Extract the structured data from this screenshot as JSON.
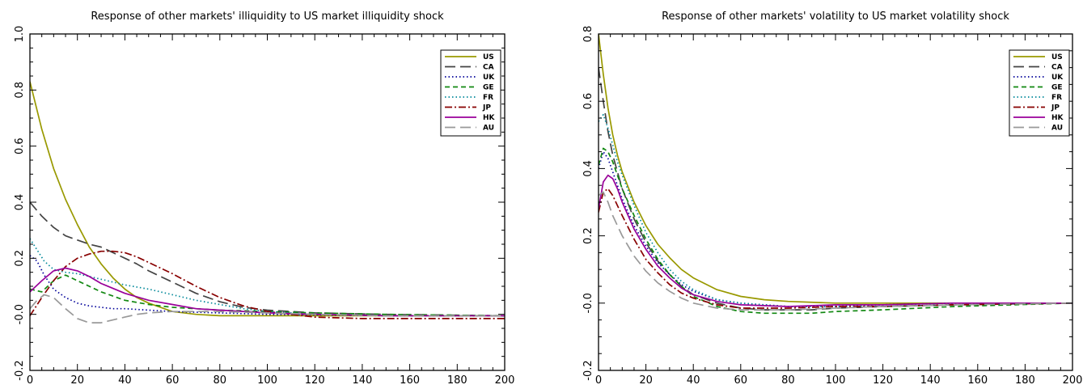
{
  "chart_data": [
    {
      "type": "line",
      "title": "Response of other markets' illiquidity to US market illiquidity shock",
      "xlabel": "",
      "ylabel": "",
      "xlim": [
        0,
        200
      ],
      "ylim": [
        -0.2,
        1.0
      ],
      "xticks": [
        0,
        20,
        40,
        60,
        80,
        100,
        120,
        140,
        160,
        180,
        200
      ],
      "yticks": [
        -0.2,
        0.0,
        0.2,
        0.4,
        0.6,
        0.8,
        1.0
      ],
      "tick_labels_x": [
        "0",
        "20",
        "40",
        "60",
        "80",
        "100",
        "120",
        "140",
        "160",
        "180",
        "200"
      ],
      "tick_labels_y": [
        "-0.2",
        "-0.0",
        "0.2",
        "0.4",
        "0.6",
        "0.8",
        "1.0"
      ],
      "legend": "top-right",
      "grid": false,
      "series": [
        {
          "name": "US",
          "color": "#999900",
          "dash": "solid",
          "x": [
            0,
            5,
            10,
            15,
            20,
            25,
            30,
            35,
            40,
            45,
            50,
            60,
            70,
            80,
            100,
            120,
            150,
            200
          ],
          "y": [
            0.83,
            0.66,
            0.52,
            0.41,
            0.32,
            0.24,
            0.18,
            0.13,
            0.09,
            0.06,
            0.04,
            0.01,
            0.0,
            -0.005,
            -0.005,
            -0.005,
            -0.005,
            -0.005
          ]
        },
        {
          "name": "CA",
          "color": "#444444",
          "dash": "long",
          "x": [
            0,
            5,
            10,
            15,
            20,
            25,
            30,
            35,
            40,
            45,
            50,
            60,
            70,
            80,
            90,
            100,
            120,
            150,
            200
          ],
          "y": [
            0.4,
            0.35,
            0.31,
            0.28,
            0.265,
            0.25,
            0.24,
            0.22,
            0.2,
            0.18,
            0.155,
            0.115,
            0.075,
            0.045,
            0.025,
            0.015,
            0.005,
            0.0,
            -0.005
          ]
        },
        {
          "name": "UK",
          "color": "#000099",
          "dash": "dot",
          "x": [
            0,
            3,
            6,
            10,
            15,
            20,
            25,
            30,
            35,
            40,
            50,
            60,
            80,
            100,
            150,
            200
          ],
          "y": [
            0.21,
            0.19,
            0.14,
            0.09,
            0.06,
            0.04,
            0.03,
            0.025,
            0.02,
            0.02,
            0.015,
            0.01,
            0.005,
            0.0,
            -0.005,
            -0.005
          ]
        },
        {
          "name": "GE",
          "color": "#118811",
          "dash": "short",
          "x": [
            0,
            5,
            10,
            15,
            20,
            25,
            30,
            35,
            40,
            50,
            60,
            70,
            80,
            100,
            120,
            150,
            200
          ],
          "y": [
            0.09,
            0.08,
            0.12,
            0.14,
            0.12,
            0.1,
            0.08,
            0.065,
            0.05,
            0.035,
            0.025,
            0.02,
            0.015,
            0.01,
            0.005,
            0.0,
            -0.005
          ]
        },
        {
          "name": "FR",
          "color": "#008899",
          "dash": "dot",
          "x": [
            0,
            3,
            6,
            10,
            15,
            20,
            25,
            30,
            40,
            50,
            60,
            70,
            80,
            90,
            100,
            120,
            150,
            200
          ],
          "y": [
            0.27,
            0.23,
            0.19,
            0.16,
            0.15,
            0.145,
            0.135,
            0.125,
            0.105,
            0.09,
            0.07,
            0.05,
            0.035,
            0.02,
            0.01,
            0.0,
            -0.005,
            -0.005
          ]
        },
        {
          "name": "JP",
          "color": "#880000",
          "dash": "dashdot",
          "x": [
            0,
            5,
            10,
            15,
            20,
            25,
            30,
            35,
            40,
            45,
            50,
            60,
            70,
            80,
            90,
            100,
            110,
            120,
            140,
            160,
            200
          ],
          "y": [
            -0.005,
            0.06,
            0.12,
            0.17,
            0.2,
            0.215,
            0.225,
            0.225,
            0.22,
            0.205,
            0.185,
            0.145,
            0.1,
            0.06,
            0.03,
            0.01,
            0.0,
            -0.01,
            -0.015,
            -0.015,
            -0.015
          ]
        },
        {
          "name": "HK",
          "color": "#990099",
          "dash": "solid",
          "x": [
            0,
            5,
            10,
            15,
            20,
            25,
            30,
            40,
            50,
            60,
            70,
            80,
            100,
            120,
            150,
            200
          ],
          "y": [
            0.08,
            0.12,
            0.155,
            0.165,
            0.155,
            0.135,
            0.11,
            0.075,
            0.05,
            0.035,
            0.02,
            0.015,
            0.005,
            0.0,
            -0.005,
            -0.005
          ]
        },
        {
          "name": "AU",
          "color": "#999999",
          "dash": "long",
          "x": [
            0,
            3,
            6,
            10,
            15,
            20,
            25,
            30,
            35,
            40,
            45,
            50,
            60,
            70,
            80,
            100,
            120,
            150,
            200
          ],
          "y": [
            0.02,
            0.05,
            0.07,
            0.06,
            0.02,
            -0.015,
            -0.03,
            -0.03,
            -0.02,
            -0.01,
            0.0,
            0.005,
            0.01,
            0.01,
            0.01,
            0.005,
            0.0,
            -0.005,
            -0.005
          ]
        }
      ]
    },
    {
      "type": "line",
      "title": "Response of other markets' volatility to US market volatility shock",
      "xlabel": "",
      "ylabel": "",
      "xlim": [
        0,
        200
      ],
      "ylim": [
        -0.2,
        0.8
      ],
      "xticks": [
        0,
        20,
        40,
        60,
        80,
        100,
        120,
        140,
        160,
        180,
        200
      ],
      "yticks": [
        -0.2,
        0.0,
        0.2,
        0.4,
        0.6,
        0.8
      ],
      "tick_labels_x": [
        "0",
        "20",
        "40",
        "60",
        "80",
        "100",
        "120",
        "140",
        "160",
        "180",
        "200"
      ],
      "tick_labels_y": [
        "-0.2",
        "-0.0",
        "0.2",
        "0.4",
        "0.6",
        "0.8"
      ],
      "legend": "top-right",
      "grid": false,
      "series": [
        {
          "name": "US",
          "color": "#999900",
          "dash": "solid",
          "x": [
            0,
            2,
            4,
            6,
            8,
            10,
            15,
            20,
            25,
            30,
            35,
            40,
            50,
            60,
            70,
            80,
            100,
            120,
            150,
            200
          ],
          "y": [
            0.8,
            0.68,
            0.58,
            0.5,
            0.44,
            0.39,
            0.3,
            0.23,
            0.175,
            0.135,
            0.1,
            0.075,
            0.04,
            0.02,
            0.01,
            0.005,
            0.0,
            0.0,
            0.0,
            0.0
          ]
        },
        {
          "name": "CA",
          "color": "#444444",
          "dash": "long",
          "x": [
            0,
            2,
            4,
            6,
            8,
            10,
            15,
            20,
            25,
            30,
            35,
            40,
            50,
            60,
            70,
            80,
            90,
            100,
            120,
            150,
            200
          ],
          "y": [
            0.7,
            0.6,
            0.51,
            0.44,
            0.39,
            0.34,
            0.25,
            0.18,
            0.125,
            0.085,
            0.05,
            0.025,
            0.0,
            -0.015,
            -0.02,
            -0.02,
            -0.02,
            -0.015,
            -0.01,
            -0.005,
            0.0
          ]
        },
        {
          "name": "UK",
          "color": "#000099",
          "dash": "dot",
          "x": [
            0,
            2,
            4,
            6,
            8,
            10,
            15,
            20,
            25,
            30,
            35,
            40,
            50,
            60,
            80,
            100,
            120,
            150,
            200
          ],
          "y": [
            0.4,
            0.45,
            0.43,
            0.39,
            0.35,
            0.31,
            0.23,
            0.17,
            0.12,
            0.085,
            0.055,
            0.035,
            0.01,
            0.0,
            -0.01,
            -0.01,
            -0.005,
            0.0,
            0.0
          ]
        },
        {
          "name": "GE",
          "color": "#118811",
          "dash": "short",
          "x": [
            0,
            2,
            4,
            6,
            8,
            10,
            15,
            20,
            25,
            30,
            35,
            40,
            50,
            60,
            70,
            80,
            90,
            100,
            120,
            150,
            200
          ],
          "y": [
            0.41,
            0.46,
            0.45,
            0.42,
            0.38,
            0.34,
            0.26,
            0.19,
            0.13,
            0.085,
            0.05,
            0.02,
            -0.01,
            -0.025,
            -0.03,
            -0.03,
            -0.03,
            -0.025,
            -0.02,
            -0.01,
            0.0
          ]
        },
        {
          "name": "FR",
          "color": "#008899",
          "dash": "dot",
          "x": [
            0,
            2,
            4,
            6,
            8,
            10,
            15,
            20,
            25,
            30,
            35,
            40,
            50,
            60,
            80,
            100,
            120,
            150,
            200
          ],
          "y": [
            0.54,
            0.56,
            0.52,
            0.47,
            0.42,
            0.38,
            0.29,
            0.21,
            0.15,
            0.1,
            0.065,
            0.04,
            0.01,
            0.0,
            -0.01,
            -0.01,
            -0.005,
            0.0,
            0.0
          ]
        },
        {
          "name": "JP",
          "color": "#880000",
          "dash": "dashdot",
          "x": [
            0,
            2,
            4,
            6,
            8,
            10,
            15,
            20,
            25,
            30,
            35,
            40,
            50,
            60,
            80,
            100,
            120,
            150,
            200
          ],
          "y": [
            0.27,
            0.33,
            0.34,
            0.32,
            0.29,
            0.26,
            0.19,
            0.13,
            0.09,
            0.055,
            0.03,
            0.015,
            -0.005,
            -0.015,
            -0.015,
            -0.01,
            -0.01,
            -0.005,
            0.0
          ]
        },
        {
          "name": "HK",
          "color": "#990099",
          "dash": "solid",
          "x": [
            0,
            2,
            4,
            6,
            8,
            10,
            15,
            20,
            25,
            30,
            35,
            40,
            50,
            60,
            80,
            100,
            120,
            150,
            200
          ],
          "y": [
            0.28,
            0.36,
            0.38,
            0.37,
            0.34,
            0.3,
            0.22,
            0.16,
            0.11,
            0.075,
            0.045,
            0.025,
            0.005,
            -0.005,
            -0.01,
            -0.005,
            -0.005,
            0.0,
            0.0
          ]
        },
        {
          "name": "AU",
          "color": "#999999",
          "dash": "long",
          "x": [
            0,
            2,
            4,
            6,
            8,
            10,
            15,
            20,
            25,
            30,
            35,
            40,
            50,
            60,
            80,
            100,
            120,
            150,
            200
          ],
          "y": [
            0.32,
            0.33,
            0.3,
            0.26,
            0.23,
            0.2,
            0.14,
            0.095,
            0.06,
            0.035,
            0.015,
            0.0,
            -0.015,
            -0.02,
            -0.02,
            -0.015,
            -0.01,
            -0.005,
            0.0
          ]
        }
      ]
    }
  ]
}
